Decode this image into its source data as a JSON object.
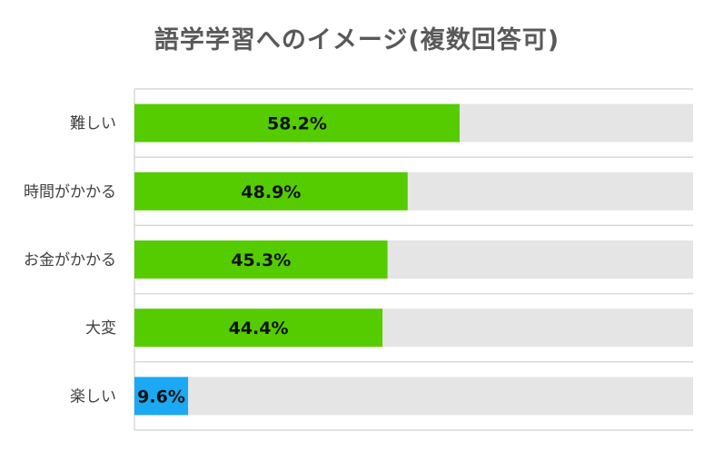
{
  "chart_data": {
    "type": "bar",
    "orientation": "horizontal",
    "title": "語学学習へのイメージ(複数回答可)",
    "categories": [
      "難しい",
      "時間がかかる",
      "お金がかかる",
      "大変",
      "楽しい"
    ],
    "values": [
      58.2,
      48.9,
      45.3,
      44.4,
      9.6
    ],
    "value_labels": [
      "58.2%",
      "48.9%",
      "45.3%",
      "44.4%",
      "9.6%"
    ],
    "xlim": [
      0,
      100
    ],
    "bar_colors": [
      "#55cc00",
      "#55cc00",
      "#55cc00",
      "#55cc00",
      "#1aa9f2"
    ],
    "track_color": "#e5e5e5",
    "gridline_color": "#d9d9d9",
    "title_color": "#595959",
    "grid": true,
    "legend": "none"
  }
}
